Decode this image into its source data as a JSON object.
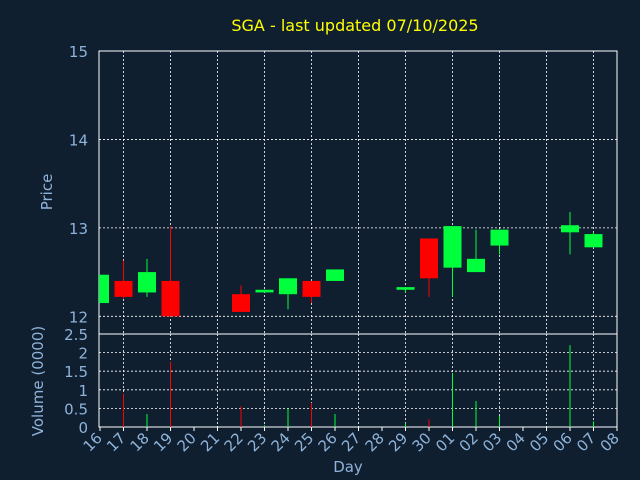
{
  "chart_data": {
    "type": "candlestick",
    "title": "SGA - last updated 07/10/2025",
    "xlabel": "Day",
    "price_ylabel": "Price",
    "volume_ylabel": "Volume (0000)",
    "price_ylim": [
      11.8,
      15
    ],
    "price_ticks": [
      "12",
      "13",
      "14",
      "15"
    ],
    "volume_ylim": [
      0,
      2.5
    ],
    "volume_ticks": [
      "0",
      "0.5",
      "1",
      "1.5",
      "2",
      "2.5"
    ],
    "grid": true,
    "x_labels": [
      "16",
      "17",
      "18",
      "19",
      "20",
      "21",
      "22",
      "23",
      "24",
      "25",
      "26",
      "27",
      "28",
      "29",
      "30",
      "01",
      "02",
      "03",
      "04",
      "05",
      "06",
      "07",
      "08"
    ],
    "candles": [
      {
        "day": "16",
        "open": 12.15,
        "high": 12.47,
        "low": 12.15,
        "close": 12.47,
        "volume": 0
      },
      {
        "day": "17",
        "open": 12.4,
        "high": 12.63,
        "low": 12.2,
        "close": 12.22,
        "volume": 0.9
      },
      {
        "day": "18",
        "open": 12.27,
        "high": 12.65,
        "low": 12.22,
        "close": 12.5,
        "volume": 0.35
      },
      {
        "day": "19",
        "open": 12.4,
        "high": 13.02,
        "low": 12.0,
        "close": 12.0,
        "volume": 1.75
      },
      {
        "day": "22",
        "open": 12.25,
        "high": 12.35,
        "low": 12.05,
        "close": 12.05,
        "volume": 0.55
      },
      {
        "day": "23",
        "open": 12.27,
        "high": 12.3,
        "low": 12.27,
        "close": 12.3,
        "volume": 0.05
      },
      {
        "day": "24",
        "open": 12.25,
        "high": 12.43,
        "low": 12.08,
        "close": 12.43,
        "volume": 0.5
      },
      {
        "day": "25",
        "open": 12.4,
        "high": 12.4,
        "low": 12.15,
        "close": 12.22,
        "volume": 0.65
      },
      {
        "day": "26",
        "open": 12.4,
        "high": 12.53,
        "low": 12.4,
        "close": 12.53,
        "volume": 0.35
      },
      {
        "day": "29",
        "open": 12.3,
        "high": 12.33,
        "low": 12.27,
        "close": 12.33,
        "volume": 0.1
      },
      {
        "day": "30",
        "open": 12.88,
        "high": 12.88,
        "low": 12.22,
        "close": 12.43,
        "volume": 0.2
      },
      {
        "day": "01",
        "open": 12.55,
        "high": 13.02,
        "low": 12.22,
        "close": 13.02,
        "volume": 1.45
      },
      {
        "day": "02",
        "open": 12.5,
        "high": 12.98,
        "low": 12.5,
        "close": 12.65,
        "volume": 0.7
      },
      {
        "day": "03",
        "open": 12.8,
        "high": 12.98,
        "low": 12.7,
        "close": 12.98,
        "volume": 0.3
      },
      {
        "day": "06",
        "open": 12.95,
        "high": 13.18,
        "low": 12.7,
        "close": 13.03,
        "volume": 2.2
      },
      {
        "day": "07",
        "open": 12.78,
        "high": 12.95,
        "low": 12.78,
        "close": 12.93,
        "volume": 0.15
      }
    ],
    "colors": {
      "background": "#0f1f30",
      "up": "#00ff3c",
      "down": "#ff0000",
      "title": "#ffff00",
      "axis_text": "#8fb3d9",
      "grid": "#ffffff"
    }
  }
}
